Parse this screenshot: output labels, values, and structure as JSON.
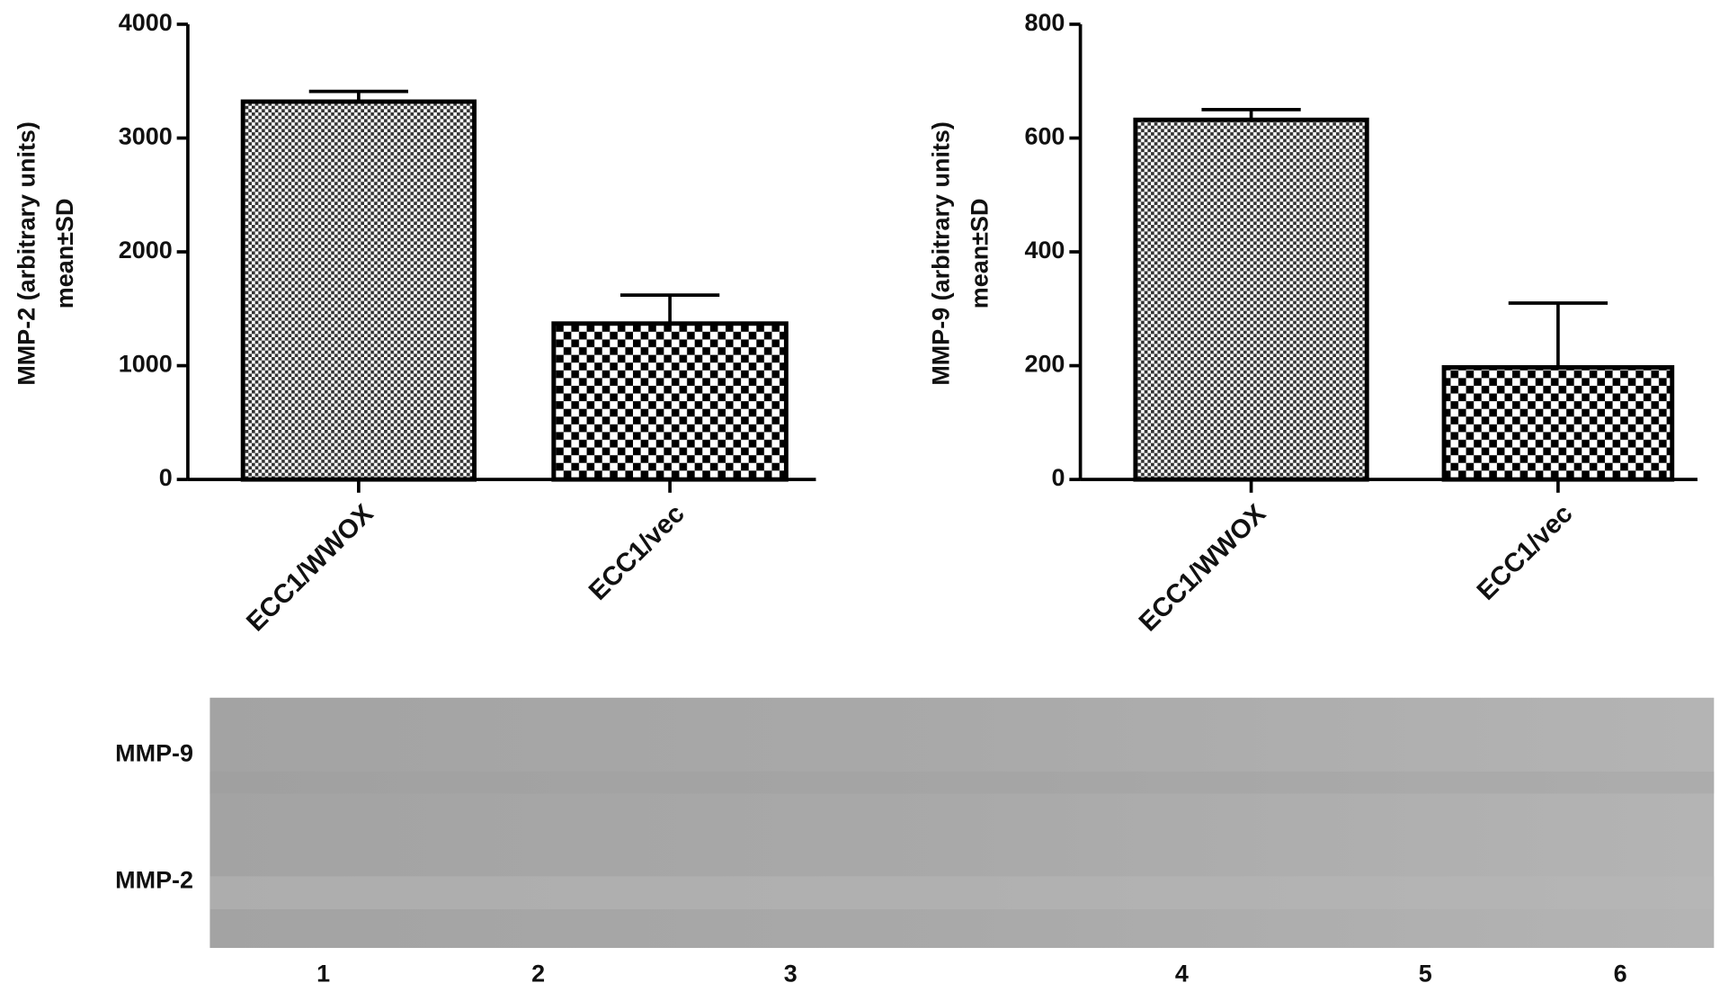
{
  "chart_data": [
    {
      "type": "bar",
      "ylabel": [
        "MMP-2 (arbitrary units)",
        "mean±SD"
      ],
      "categories": [
        "ECC1/WWOX",
        "ECC1/vec"
      ],
      "values": [
        3320,
        1370
      ],
      "errors": [
        90,
        250
      ],
      "ylim": [
        0,
        4000
      ],
      "yticks": [
        0,
        1000,
        2000,
        3000,
        4000
      ]
    },
    {
      "type": "bar",
      "ylabel": [
        "MMP-9 (arbitrary units)",
        "mean±SD"
      ],
      "categories": [
        "ECC1/WWOX",
        "ECC1/vec"
      ],
      "values": [
        632,
        197
      ],
      "errors": [
        18,
        113
      ],
      "ylim": [
        0,
        800
      ],
      "yticks": [
        0,
        200,
        400,
        600,
        800
      ]
    }
  ],
  "gel": {
    "bands": [
      "MMP-9",
      "MMP-2"
    ],
    "lanes": [
      "1",
      "2",
      "3",
      "4",
      "5",
      "6"
    ]
  }
}
